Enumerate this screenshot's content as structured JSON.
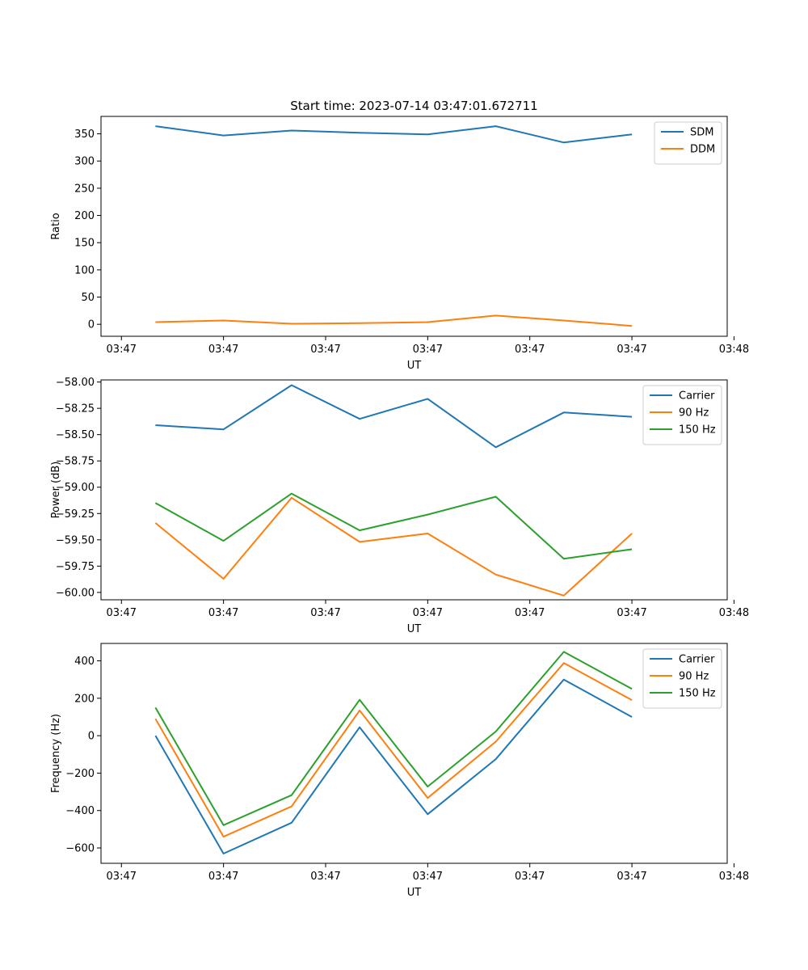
{
  "figure": {
    "title": "Start time: 2023-07-14 03:47:01.672711"
  },
  "chart_data": [
    {
      "type": "line",
      "title": "Start time: 2023-07-14 03:47:01.672711",
      "xlabel": "UT",
      "ylabel": "Ratio",
      "ylim": [
        -22,
        382
      ],
      "xlim": [
        -0.3,
        8.9
      ],
      "x": [
        0.5,
        1.5,
        2.5,
        3.5,
        4.5,
        5.5,
        6.5,
        7.5
      ],
      "xticks": {
        "positions": [
          0,
          1.5,
          3,
          4.5,
          6,
          7.5,
          9
        ],
        "labels": [
          "03:47",
          "03:47",
          "03:47",
          "03:47",
          "03:47",
          "03:47",
          "03:48"
        ]
      },
      "yticks": [
        0,
        50,
        100,
        150,
        200,
        250,
        300,
        350
      ],
      "ytick_labels": [
        "0",
        "50",
        "100",
        "150",
        "200",
        "250",
        "300",
        "350"
      ],
      "legend_position": "top-right",
      "series": [
        {
          "name": "SDM",
          "color": "#1f77b4",
          "values": [
            364,
            347,
            356,
            352,
            349,
            364,
            334,
            349
          ]
        },
        {
          "name": "DDM",
          "color": "#ff7f0e",
          "values": [
            4,
            7,
            1,
            2,
            4,
            16,
            7,
            -3
          ]
        }
      ]
    },
    {
      "type": "line",
      "title": "",
      "xlabel": "UT",
      "ylabel": "Power (dB)",
      "ylim": [
        -60.07,
        -57.98
      ],
      "xlim": [
        -0.3,
        8.9
      ],
      "x": [
        0.5,
        1.5,
        2.5,
        3.5,
        4.5,
        5.5,
        6.5,
        7.5
      ],
      "xticks": {
        "positions": [
          0,
          1.5,
          3,
          4.5,
          6,
          7.5,
          9
        ],
        "labels": [
          "03:47",
          "03:47",
          "03:47",
          "03:47",
          "03:47",
          "03:47",
          "03:48"
        ]
      },
      "yticks": [
        -60.0,
        -59.75,
        -59.5,
        -59.25,
        -59.0,
        -58.75,
        -58.5,
        -58.25,
        -58.0
      ],
      "ytick_labels": [
        "−60.00",
        "−59.75",
        "−59.50",
        "−59.25",
        "−59.00",
        "−58.75",
        "−58.50",
        "−58.25",
        "−58.00"
      ],
      "legend_position": "top-right",
      "series": [
        {
          "name": "Carrier",
          "color": "#1f77b4",
          "values": [
            -58.41,
            -58.45,
            -58.03,
            -58.35,
            -58.16,
            -58.62,
            -58.29,
            -58.33
          ]
        },
        {
          "name": "90 Hz",
          "color": "#ff7f0e",
          "values": [
            -59.34,
            -59.87,
            -59.1,
            -59.52,
            -59.44,
            -59.83,
            -60.03,
            -59.44
          ]
        },
        {
          "name": "150 Hz",
          "color": "#2ca02c",
          "values": [
            -59.15,
            -59.51,
            -59.06,
            -59.41,
            -59.26,
            -59.09,
            -59.68,
            -59.59
          ]
        }
      ]
    },
    {
      "type": "line",
      "title": "",
      "xlabel": "UT",
      "ylabel": "Frequency (Hz)",
      "ylim": [
        -682,
        493
      ],
      "xlim": [
        -0.3,
        8.9
      ],
      "x": [
        0.5,
        1.5,
        2.5,
        3.5,
        4.5,
        5.5,
        6.5,
        7.5
      ],
      "xticks": {
        "positions": [
          0,
          1.5,
          3,
          4.5,
          6,
          7.5,
          9
        ],
        "labels": [
          "03:47",
          "03:47",
          "03:47",
          "03:47",
          "03:47",
          "03:47",
          "03:48"
        ]
      },
      "yticks": [
        -600,
        -400,
        -200,
        0,
        200,
        400
      ],
      "ytick_labels": [
        "−600",
        "−400",
        "−200",
        "0",
        "200",
        "400"
      ],
      "legend_position": "top-right",
      "series": [
        {
          "name": "Carrier",
          "color": "#1f77b4",
          "values": [
            0,
            -630,
            -465,
            45,
            -420,
            -125,
            300,
            100
          ]
        },
        {
          "name": "90 Hz",
          "color": "#ff7f0e",
          "values": [
            90,
            -540,
            -378,
            135,
            -333,
            -32,
            388,
            190
          ]
        },
        {
          "name": "150 Hz",
          "color": "#2ca02c",
          "values": [
            150,
            -478,
            -318,
            192,
            -272,
            22,
            448,
            250
          ]
        }
      ]
    }
  ]
}
